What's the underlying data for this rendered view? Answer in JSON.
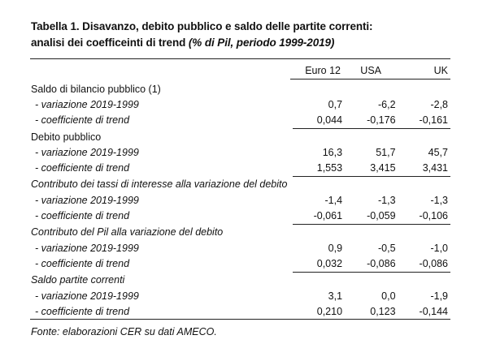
{
  "title": {
    "line1": "Tabella 1. Disavanzo, debito pubblico e saldo delle partite correnti:",
    "line2_main": "analisi dei coefficeinti di trend ",
    "line2_paren": "(% di Pil, periodo 1999-2019)"
  },
  "columns": [
    "Euro 12",
    "USA",
    "UK"
  ],
  "groups": [
    {
      "label": "Saldo di bilancio pubblico (1)",
      "italic": false,
      "rows": [
        {
          "label": "- variazione 2019-1999",
          "values": [
            "0,7",
            "-6,2",
            "-2,8"
          ]
        },
        {
          "label": "- coefficiente di trend",
          "values": [
            "0,044",
            "-0,176",
            "-0,161"
          ]
        }
      ]
    },
    {
      "label": "Debito pubblico",
      "italic": false,
      "rows": [
        {
          "label": "- variazione 2019-1999",
          "values": [
            "16,3",
            "51,7",
            "45,7"
          ]
        },
        {
          "label": "- coefficiente di trend",
          "values": [
            "1,553",
            "3,415",
            "3,431"
          ]
        }
      ]
    },
    {
      "label": "Contributo dei tassi di interesse alla variazione del debito",
      "italic": true,
      "rows": [
        {
          "label": "- variazione 2019-1999",
          "values": [
            "-1,4",
            "-1,3",
            "-1,3"
          ]
        },
        {
          "label": "- coefficiente di trend",
          "values": [
            "-0,061",
            "-0,059",
            "-0,106"
          ]
        }
      ]
    },
    {
      "label": "Contributo del Pil alla variazione del debito",
      "italic": true,
      "rows": [
        {
          "label": "- variazione 2019-1999",
          "values": [
            "0,9",
            "-0,5",
            "-1,0"
          ]
        },
        {
          "label": "- coefficiente di trend",
          "values": [
            "0,032",
            "-0,086",
            "-0,086"
          ]
        }
      ]
    },
    {
      "label": "Saldo partite correnti",
      "italic": true,
      "rows": [
        {
          "label": "- variazione 2019-1999",
          "values": [
            "3,1",
            "0,0",
            "-1,9"
          ]
        },
        {
          "label": "- coefficiente di trend",
          "values": [
            "0,210",
            "0,123",
            "-0,144"
          ]
        }
      ]
    }
  ],
  "source": "Fonte: elaborazioni CER su dati AMECO."
}
